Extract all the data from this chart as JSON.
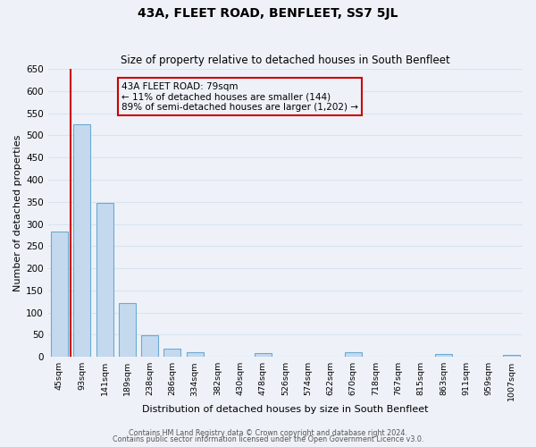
{
  "title": "43A, FLEET ROAD, BENFLEET, SS7 5JL",
  "subtitle": "Size of property relative to detached houses in South Benfleet",
  "xlabel": "Distribution of detached houses by size in South Benfleet",
  "ylabel": "Number of detached properties",
  "footer_line1": "Contains HM Land Registry data © Crown copyright and database right 2024.",
  "footer_line2": "Contains public sector information licensed under the Open Government Licence v3.0.",
  "annotation_title": "43A FLEET ROAD: 79sqm",
  "annotation_line1": "← 11% of detached houses are smaller (144)",
  "annotation_line2": "89% of semi-detached houses are larger (1,202) →",
  "categories": [
    "45sqm",
    "93sqm",
    "141sqm",
    "189sqm",
    "238sqm",
    "286sqm",
    "334sqm",
    "382sqm",
    "430sqm",
    "478sqm",
    "526sqm",
    "574sqm",
    "622sqm",
    "670sqm",
    "718sqm",
    "767sqm",
    "815sqm",
    "863sqm",
    "911sqm",
    "959sqm",
    "1007sqm"
  ],
  "values": [
    283,
    525,
    347,
    122,
    48,
    18,
    10,
    0,
    0,
    8,
    0,
    0,
    0,
    10,
    0,
    0,
    0,
    6,
    0,
    0,
    5
  ],
  "bar_color": "#c5d9ee",
  "bar_edge_color": "#6aaad4",
  "ylim": [
    0,
    650
  ],
  "yticks": [
    0,
    50,
    100,
    150,
    200,
    250,
    300,
    350,
    400,
    450,
    500,
    550,
    600,
    650
  ],
  "vline_color": "#cc0000",
  "annotation_box_edge_color": "#cc0000",
  "background_color": "#eef2f8",
  "grid_color": "#d8e4f0"
}
